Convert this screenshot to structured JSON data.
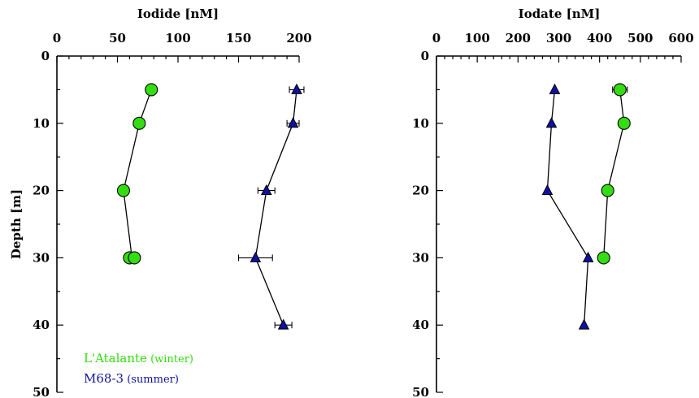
{
  "chart_data": [
    {
      "type": "scatter",
      "xlabel": "Iodide [nM]",
      "ylabel": "Depth [m]",
      "xlim": [
        0,
        200
      ],
      "ylim": [
        0,
        50
      ],
      "y_inverted": true,
      "x_ticks": [
        "0",
        "50",
        "100",
        "150",
        "200"
      ],
      "y_ticks": [
        "0",
        "10",
        "20",
        "30",
        "40",
        "50"
      ],
      "legend_position": "bottom-left",
      "series": [
        {
          "name": "L'Atalante (winter)",
          "color": "#33dd11",
          "marker": "circle",
          "points": [
            {
              "x": 78,
              "y": 5
            },
            {
              "x": 68,
              "y": 10
            },
            {
              "x": 55,
              "y": 20
            },
            {
              "x": 60,
              "y": 30
            },
            {
              "x": 64,
              "y": 30
            }
          ]
        },
        {
          "name": "M68-3 (summer)",
          "color": "#1010a0",
          "marker": "triangle",
          "points": [
            {
              "x": 198,
              "y": 5,
              "xerr": 6
            },
            {
              "x": 195,
              "y": 10,
              "xerr": 5
            },
            {
              "x": 173,
              "y": 20,
              "xerr": 7
            },
            {
              "x": 164,
              "y": 30,
              "xerr": 14
            },
            {
              "x": 187,
              "y": 40,
              "xerr": 7
            }
          ]
        }
      ]
    },
    {
      "type": "scatter",
      "xlabel": "Iodate [nM]",
      "ylabel": "",
      "xlim": [
        0,
        600
      ],
      "ylim": [
        0,
        50
      ],
      "y_inverted": true,
      "x_ticks": [
        "0",
        "100",
        "200",
        "300",
        "400",
        "500",
        "600"
      ],
      "y_ticks": [
        "0",
        "10",
        "20",
        "30",
        "40",
        "50"
      ],
      "series": [
        {
          "name": "L'Atalante (winter)",
          "color": "#33dd11",
          "marker": "circle",
          "points": [
            {
              "x": 450,
              "y": 5,
              "xerr": 18
            },
            {
              "x": 460,
              "y": 10
            },
            {
              "x": 420,
              "y": 20
            },
            {
              "x": 410,
              "y": 30
            }
          ]
        },
        {
          "name": "M68-3 (summer)",
          "color": "#1010a0",
          "marker": "triangle",
          "points": [
            {
              "x": 290,
              "y": 5
            },
            {
              "x": 282,
              "y": 10
            },
            {
              "x": 272,
              "y": 20
            },
            {
              "x": 372,
              "y": 30
            },
            {
              "x": 362,
              "y": 40
            }
          ]
        }
      ]
    }
  ],
  "legend": {
    "items": [
      {
        "label": "L'Atalante (winter)",
        "color": "#33dd11"
      },
      {
        "label": "M68-3 (summer)",
        "color": "#1010a0"
      }
    ]
  }
}
